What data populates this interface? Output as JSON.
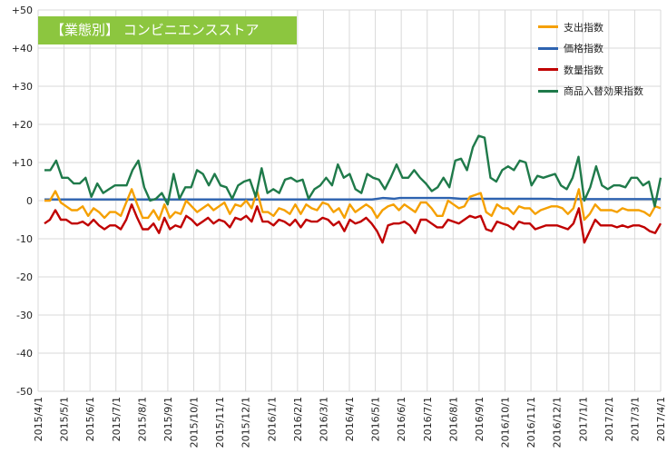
{
  "title_badge": "【業態別】 コンビニエンスストア",
  "colors": {
    "spending": "#f5a000",
    "price": "#2e63b0",
    "quantity": "#c00000",
    "mix": "#1f7a4a"
  },
  "legend": [
    {
      "label": "支出指数",
      "color": "#f5a000"
    },
    {
      "label": "価格指数",
      "color": "#2e63b0"
    },
    {
      "label": "数量指数",
      "color": "#c00000"
    },
    {
      "label": "商品入替効果指数",
      "color": "#1f7a4a"
    }
  ],
  "chart_data": {
    "type": "line",
    "title": "【業態別】 コンビニエンスストア",
    "ylim": [
      -50,
      50
    ],
    "yticks": [
      "+50",
      "+40",
      "+30",
      "+20",
      "+10",
      "0",
      "-10",
      "-20",
      "-30",
      "-40",
      "-50"
    ],
    "xlabels": [
      "2015/4/1",
      "2015/5/1",
      "2015/6/1",
      "2015/7/1",
      "2015/8/1",
      "2015/9/1",
      "2015/10/1",
      "2015/11/1",
      "2015/12/1",
      "2016/1/1",
      "2016/2/1",
      "2016/3/1",
      "2016/4/1",
      "2016/5/1",
      "2016/6/1",
      "2016/7/1",
      "2016/8/1",
      "2016/9/1",
      "2016/10/1",
      "2016/11/1",
      "2016/12/1",
      "2017/1/1",
      "2017/2/1",
      "2017/3/1",
      "2017/4/1"
    ],
    "grid": true,
    "legend_position": "top-right",
    "series": [
      {
        "name": "支出指数",
        "color": "#f5a000",
        "values": [
          0,
          0,
          2.5,
          -0.5,
          -1.5,
          -2.5,
          -2.5,
          -1.5,
          -4,
          -2,
          -3,
          -4.5,
          -3,
          -3,
          -4,
          -0.5,
          3,
          -1,
          -4.5,
          -4.5,
          -2.5,
          -5,
          -1,
          -4.5,
          -3,
          -3.5,
          0,
          -1.5,
          -3,
          -2,
          -1,
          -2.5,
          -1.5,
          -0.5,
          -3.5,
          -1,
          -1.5,
          0,
          -2,
          2.5,
          -3,
          -3,
          -4,
          -2,
          -2.5,
          -3.5,
          -1,
          -3.5,
          -1,
          -2,
          -2.5,
          -0.5,
          -1,
          -3,
          -2,
          -4.5,
          -1,
          -3,
          -2,
          -1,
          -2,
          -4.5,
          -2.5,
          -1.5,
          -1,
          -2.5,
          -1,
          -2,
          -3,
          -0.5,
          -0.5,
          -2,
          -4,
          -4,
          0,
          -1,
          -2,
          -1.5,
          1,
          1.5,
          2,
          -3,
          -4,
          -1,
          -2,
          -2,
          -3.5,
          -1.5,
          -2,
          -2,
          -3.5,
          -2.5,
          -2,
          -1.5,
          -1.5,
          -2,
          -3.5,
          -2,
          3,
          -5,
          -3.5,
          -1,
          -2.5,
          -2.5,
          -2.5,
          -3,
          -2,
          -2.5,
          -2.5,
          -2.5,
          -3,
          -4,
          -1.5,
          -2
        ]
      },
      {
        "name": "価格指数",
        "color": "#2e63b0",
        "values": [
          0.3,
          0.3,
          0.3,
          0.3,
          0.3,
          0.3,
          0.3,
          0.3,
          0.3,
          0.3,
          0.3,
          0.3,
          0.3,
          0.3,
          0.3,
          0.3,
          0.3,
          0.3,
          0.3,
          0.3,
          0.3,
          0.3,
          0.3,
          0.3,
          0.3,
          0.3,
          0.3,
          0.3,
          0.3,
          0.3,
          0.3,
          0.3,
          0.3,
          0.3,
          0.3,
          0.3,
          0.3,
          0.3,
          0.3,
          0.3,
          0.3,
          0.3,
          0.3,
          0.3,
          0.3,
          0.3,
          0.3,
          0.3,
          0.3,
          0.3,
          0.3,
          0.3,
          0.3,
          0.3,
          0.3,
          0.3,
          0.3,
          0.3,
          0.3,
          0.3,
          0.5,
          0.7,
          0.6,
          0.5,
          0.7,
          0.7,
          0.7,
          0.7,
          0.7,
          0.7,
          0.7,
          0.7,
          0.7,
          0.7,
          0.6,
          0.5,
          0.5,
          0.5,
          0.5,
          0.5,
          0.5,
          0.5,
          0.5,
          0.5,
          0.5,
          0.5,
          0.5,
          0.5,
          0.5,
          0.5,
          0.5,
          0.5,
          0.4,
          0.4,
          0.4,
          0.4,
          0.4,
          0.4,
          0.4,
          0.4,
          0.4,
          0.4,
          0.4,
          0.4,
          0.4,
          0.4,
          0.4,
          0.4,
          0.4,
          0.4,
          0.4,
          0.4
        ]
      },
      {
        "name": "数量指数",
        "color": "#c00000",
        "values": [
          -6,
          -5,
          -2.5,
          -5,
          -5,
          -6,
          -6,
          -5.5,
          -6.5,
          -5,
          -6.5,
          -7.5,
          -6.5,
          -6.5,
          -7.5,
          -5,
          -1,
          -4.5,
          -7.5,
          -7.5,
          -6,
          -8.5,
          -4.5,
          -7.5,
          -6.5,
          -7,
          -4,
          -5,
          -6.5,
          -5.5,
          -4.5,
          -6,
          -5,
          -5.5,
          -7,
          -4.5,
          -5,
          -4,
          -5.5,
          -1.5,
          -5.5,
          -5.5,
          -6.5,
          -5,
          -5.5,
          -6.5,
          -5,
          -7,
          -5,
          -5.5,
          -5.5,
          -4.5,
          -5,
          -6.5,
          -5.5,
          -8,
          -5,
          -6,
          -5.5,
          -4.5,
          -6,
          -8,
          -11,
          -6.5,
          -6,
          -6,
          -5.5,
          -6.5,
          -8.5,
          -5,
          -5,
          -6,
          -7,
          -7,
          -5,
          -5.5,
          -6,
          -5,
          -4,
          -4.5,
          -4,
          -7.5,
          -8,
          -5.5,
          -6,
          -6.5,
          -7.5,
          -5.5,
          -6,
          -6,
          -7.5,
          -7,
          -6.5,
          -6.5,
          -6.5,
          -7,
          -7.5,
          -6,
          -2,
          -11,
          -8,
          -5,
          -6.5,
          -6.5,
          -6.5,
          -7,
          -6.5,
          -7,
          -6.5,
          -6.5,
          -7,
          -8,
          -8.5,
          -6
        ]
      },
      {
        "name": "商品入替効果指数",
        "color": "#1f7a4a",
        "values": [
          8,
          8,
          10.5,
          6,
          6,
          4.5,
          4.5,
          6,
          1,
          4.5,
          2,
          3,
          4,
          4,
          4,
          8,
          10.5,
          3.5,
          0,
          0.5,
          2,
          -1,
          7,
          0.5,
          3.5,
          3.5,
          8,
          7,
          4,
          7,
          4,
          3.5,
          0.5,
          4,
          5,
          5.5,
          1,
          8.5,
          2,
          3,
          2,
          5.5,
          6,
          5,
          5.5,
          0.5,
          3,
          4,
          6,
          4,
          9.5,
          6,
          7,
          3,
          2,
          7,
          6,
          5.5,
          3,
          6,
          9.5,
          6,
          6,
          8,
          6,
          4.5,
          2.5,
          3.5,
          6,
          3.5,
          10.5,
          11,
          8,
          14,
          17,
          16.5,
          6,
          5,
          8,
          9,
          8,
          10.5,
          10,
          4,
          6.5,
          6,
          6.5,
          7,
          4,
          3,
          6,
          11.5,
          0,
          3.5,
          9,
          4,
          3,
          4,
          4,
          3.5,
          6,
          6,
          4,
          5,
          -1.5,
          6
        ]
      }
    ]
  }
}
